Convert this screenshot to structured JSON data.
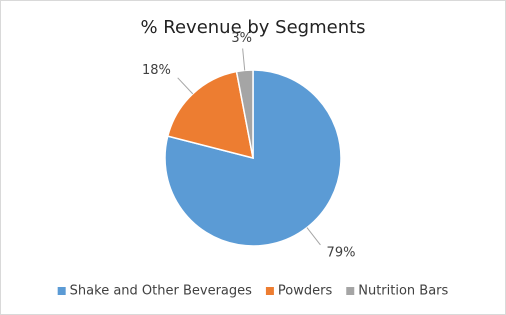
{
  "chart_data": {
    "type": "pie",
    "title": "% Revenue by Segments",
    "categories": [
      "Shake and Other Beverages",
      "Powders",
      "Nutrition Bars"
    ],
    "values": [
      79,
      18,
      3
    ],
    "value_labels": [
      "79%",
      "18%",
      "3%"
    ],
    "colors": [
      "#5b9bd5",
      "#ed7d31",
      "#a5a5a5"
    ],
    "legend": "bottom"
  }
}
